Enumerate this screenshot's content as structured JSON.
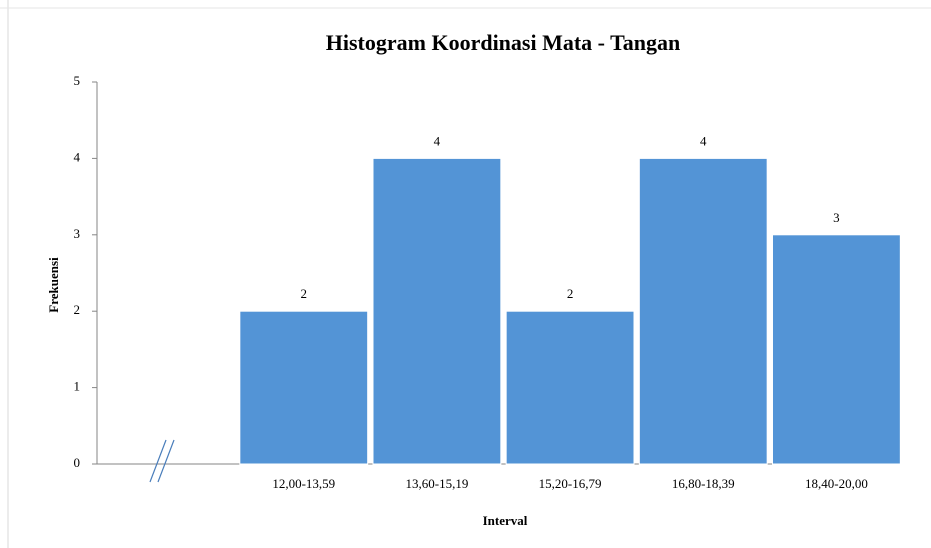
{
  "chart_data": {
    "type": "bar",
    "title": "Histogram Koordinasi Mata - Tangan",
    "x_label": "Interval",
    "y_label": "Frekuensi",
    "categories": [
      null,
      "12,00-13,59",
      "13,60-15,19",
      "15,20-16,79",
      "16,80-18,39",
      "18,40-20,00"
    ],
    "values": [
      null,
      2,
      4,
      2,
      4,
      3
    ],
    "color": "#5394d6",
    "ylim": [
      0,
      5
    ],
    "yticks": [
      0,
      1,
      2,
      3,
      4,
      5
    ],
    "grid": false
  }
}
